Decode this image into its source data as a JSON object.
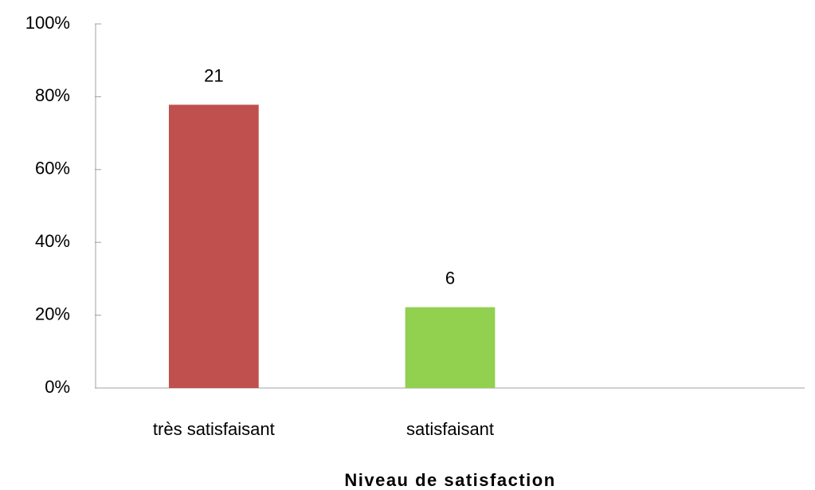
{
  "chart_data": {
    "type": "bar",
    "x_label": "Niveau de satisfaction",
    "categories": [
      "très satisfaisant",
      "satisfaisant",
      null
    ],
    "values": [
      77.8,
      22.2,
      null
    ],
    "value_labels": [
      "21",
      "6",
      null
    ],
    "colors": [
      "#c0504d",
      "#92d050",
      null
    ],
    "ylim": [
      0,
      100
    ],
    "yticks": [
      {
        "value": 0,
        "label": "0%"
      },
      {
        "value": 20,
        "label": "20%"
      },
      {
        "value": 40,
        "label": "40%"
      },
      {
        "value": 60,
        "label": "60%"
      },
      {
        "value": 80,
        "label": "80%"
      },
      {
        "value": 100,
        "label": "100%"
      }
    ],
    "grid": false
  }
}
